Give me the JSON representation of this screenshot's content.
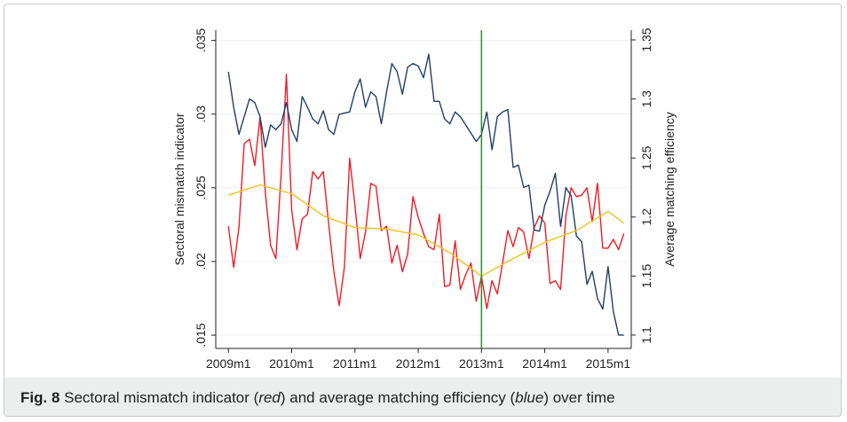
{
  "chart_data": {
    "type": "line",
    "y_label": "Sectoral mismatch indicator",
    "y2_label": "Average matching efficiency",
    "x_label": "...",
    "x": [
      588,
      589,
      590,
      591,
      592,
      593,
      594,
      595,
      596,
      597,
      598,
      599,
      600,
      601,
      602,
      603,
      604,
      605,
      606,
      607,
      608,
      609,
      610,
      611,
      612,
      613,
      614,
      615,
      616,
      617,
      618,
      619,
      620,
      621,
      622,
      623,
      624,
      625,
      626,
      627,
      628,
      629,
      630,
      631,
      632,
      633,
      634,
      635,
      636,
      637,
      638,
      639,
      640,
      641,
      642,
      643,
      644,
      645,
      646,
      647,
      648,
      649,
      650,
      651,
      652,
      653,
      654,
      655,
      656,
      657,
      658,
      659,
      660,
      661,
      662,
      663
    ],
    "series": [
      {
        "color": "#ee1c25",
        "axis": "y",
        "values": [
          0.0224,
          0.0196,
          0.0223,
          0.028,
          0.0283,
          0.0265,
          0.0298,
          0.0247,
          0.0211,
          0.0202,
          0.0259,
          0.0327,
          0.0235,
          0.0208,
          0.0229,
          0.0232,
          0.0261,
          0.0256,
          0.0261,
          0.0226,
          0.0193,
          0.017,
          0.0196,
          0.027,
          0.0238,
          0.0202,
          0.022,
          0.0253,
          0.0251,
          0.0221,
          0.0224,
          0.0199,
          0.0211,
          0.0193,
          0.0205,
          0.0244,
          0.023,
          0.0219,
          0.021,
          0.0208,
          0.0232,
          0.0183,
          0.0184,
          0.0214,
          0.0181,
          0.0191,
          0.0199,
          0.0173,
          0.019,
          0.0168,
          0.0187,
          0.0178,
          0.0199,
          0.0221,
          0.021,
          0.0223,
          0.022,
          0.0202,
          0.0223,
          0.0231,
          0.0226,
          0.0185,
          0.0187,
          0.0181,
          0.0231,
          0.025,
          0.0244,
          0.0245,
          0.025,
          0.0227,
          0.0253,
          0.0209,
          0.0209,
          0.0215,
          0.0208,
          0.0219
        ]
      },
      {
        "color": "#1f3f6e",
        "axis": "y2",
        "values": [
          1.323,
          1.293,
          1.27,
          1.285,
          1.3,
          1.297,
          1.285,
          1.259,
          1.278,
          1.274,
          1.279,
          1.297,
          1.274,
          1.264,
          1.302,
          1.293,
          1.283,
          1.279,
          1.29,
          1.274,
          1.27,
          1.287,
          1.288,
          1.289,
          1.306,
          1.317,
          1.293,
          1.306,
          1.302,
          1.279,
          1.306,
          1.33,
          1.323,
          1.304,
          1.327,
          1.33,
          1.328,
          1.318,
          1.338,
          1.298,
          1.298,
          1.283,
          1.279,
          1.289,
          1.285,
          1.278,
          1.271,
          1.264,
          1.27,
          1.289,
          1.257,
          1.285,
          1.289,
          1.291,
          1.242,
          1.244,
          1.225,
          1.227,
          1.189,
          1.188,
          1.21,
          1.222,
          1.237,
          1.192,
          1.225,
          1.218,
          1.184,
          1.179,
          1.143,
          1.154,
          1.131,
          1.122,
          1.158,
          1.12,
          1.1,
          1.1
        ]
      },
      {
        "color": "#f2c21b",
        "axis": "y",
        "x": [
          588,
          594,
          600,
          606,
          612,
          618,
          624,
          630,
          636,
          642,
          648,
          654,
          660,
          663
        ],
        "values": [
          0.0245,
          0.0252,
          0.0246,
          0.0231,
          0.0223,
          0.0222,
          0.0218,
          0.0206,
          0.019,
          0.0202,
          0.0213,
          0.0221,
          0.0234,
          0.0226
        ]
      }
    ],
    "xlim": [
      585.6,
      664.4
    ],
    "xticks": [
      {
        "value": 588,
        "label": "2009m1"
      },
      {
        "value": 600,
        "label": "2010m1"
      },
      {
        "value": 612,
        "label": "2011m1"
      },
      {
        "value": 624,
        "label": "2012m1"
      },
      {
        "value": 636,
        "label": "2013m1"
      },
      {
        "value": 648,
        "label": "2014m1"
      },
      {
        "value": 660,
        "label": "2015m1"
      }
    ],
    "ylim": [
      0.0141,
      0.0357
    ],
    "yticks": [
      {
        "value": 0.015,
        "label": ".015"
      },
      {
        "value": 0.02,
        "label": ".02"
      },
      {
        "value": 0.025,
        "label": ".025"
      },
      {
        "value": 0.03,
        "label": ".03"
      },
      {
        "value": 0.035,
        "label": ".035"
      }
    ],
    "y2lim": [
      1.0887,
      1.3583
    ],
    "y2ticks": [
      1.1,
      1.15,
      1.2,
      1.25,
      1.3,
      1.35
    ],
    "vline": {
      "value": 636,
      "color": "#2e8b2e"
    },
    "grid": true
  },
  "caption": {
    "label": "Fig. 8",
    "parts": [
      " Sectoral mismatch indicator (",
      "red",
      ") and average matching efficiency (",
      "blue",
      ") over time"
    ]
  }
}
